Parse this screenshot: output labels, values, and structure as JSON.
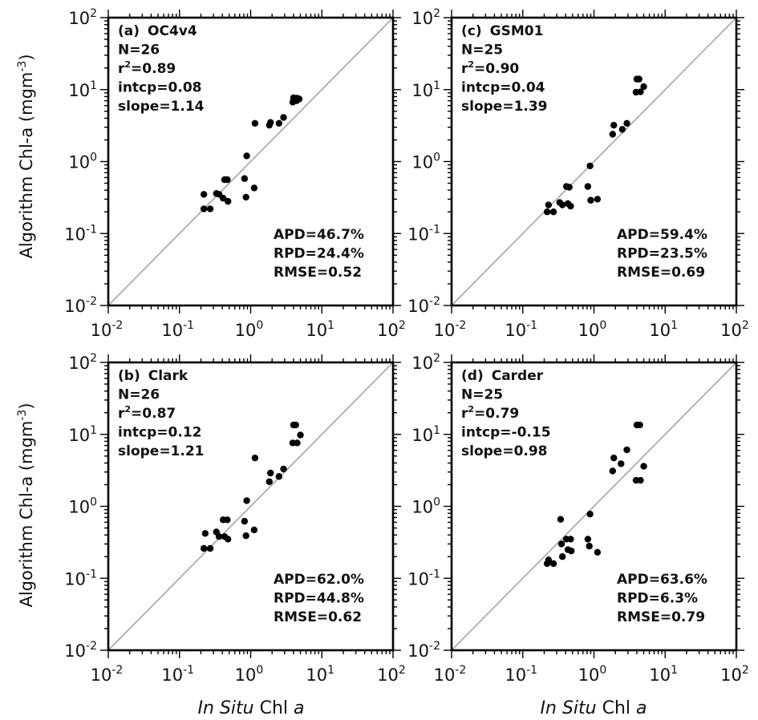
{
  "x_axis_label": {
    "italic": "In Situ",
    "rest": " Chl ",
    "last_italic": "a"
  },
  "y_axis_label": {
    "main": "Algorithm Chl-a (mgm",
    "sup": "-3",
    "close": ")"
  },
  "tick_labels": [
    {
      "base": "10",
      "exp": "-2"
    },
    {
      "base": "10",
      "exp": "-1"
    },
    {
      "base": "10",
      "exp": "0"
    },
    {
      "base": "10",
      "exp": "1"
    },
    {
      "base": "10",
      "exp": "2"
    }
  ],
  "chart_data": [
    {
      "type": "scatter",
      "panel": "(a)",
      "algorithm": "OC4v4",
      "xscale": "log",
      "yscale": "log",
      "xlim": [
        0.01,
        100
      ],
      "ylim": [
        0.01,
        100
      ],
      "one_to_one_line": true,
      "stats": {
        "N": "N=26",
        "r2_label": "r",
        "r2_value": "=0.89",
        "intcp": "intcp=0.08",
        "slope": "slope=1.14",
        "APD": "APD=46.7%",
        "RPD": "RPD=24.4%",
        "RMSE": "RMSE=0.52"
      },
      "points": [
        [
          0.22,
          0.22
        ],
        [
          0.22,
          0.35
        ],
        [
          0.27,
          0.22
        ],
        [
          0.33,
          0.36
        ],
        [
          0.36,
          0.35
        ],
        [
          0.41,
          0.31
        ],
        [
          0.43,
          0.56
        ],
        [
          0.47,
          0.56
        ],
        [
          0.48,
          0.28
        ],
        [
          0.82,
          0.58
        ],
        [
          0.86,
          0.32
        ],
        [
          0.88,
          1.2
        ],
        [
          1.12,
          0.43
        ],
        [
          1.15,
          3.4
        ],
        [
          1.83,
          3.2
        ],
        [
          1.9,
          3.5
        ],
        [
          2.5,
          3.4
        ],
        [
          2.9,
          4.1
        ],
        [
          3.9,
          6.7
        ],
        [
          4.0,
          7.7
        ],
        [
          4.2,
          7.2
        ],
        [
          4.4,
          7.0
        ],
        [
          4.5,
          7.6
        ],
        [
          4.8,
          7.4
        ]
      ]
    },
    {
      "type": "scatter",
      "panel": "(c)",
      "algorithm": "GSM01",
      "xscale": "log",
      "yscale": "log",
      "xlim": [
        0.01,
        100
      ],
      "ylim": [
        0.01,
        100
      ],
      "one_to_one_line": true,
      "stats": {
        "N": "N=25",
        "r2_label": "r",
        "r2_value": "=0.90",
        "intcp": "intcp=0.04",
        "slope": "slope=1.39",
        "APD": "APD=59.4%",
        "RPD": "RPD=23.5%",
        "RMSE": "RMSE=0.69"
      },
      "points": [
        [
          0.22,
          0.2
        ],
        [
          0.23,
          0.25
        ],
        [
          0.27,
          0.2
        ],
        [
          0.33,
          0.27
        ],
        [
          0.36,
          0.25
        ],
        [
          0.41,
          0.45
        ],
        [
          0.43,
          0.26
        ],
        [
          0.45,
          0.44
        ],
        [
          0.47,
          0.24
        ],
        [
          0.82,
          0.45
        ],
        [
          0.88,
          0.87
        ],
        [
          0.9,
          0.29
        ],
        [
          1.12,
          0.3
        ],
        [
          1.83,
          2.4
        ],
        [
          1.9,
          3.2
        ],
        [
          2.5,
          2.8
        ],
        [
          2.9,
          3.4
        ],
        [
          3.9,
          9.2
        ],
        [
          4.0,
          14
        ],
        [
          4.3,
          14
        ],
        [
          4.5,
          9.3
        ],
        [
          5.0,
          11
        ]
      ]
    },
    {
      "type": "scatter",
      "panel": "(b)",
      "algorithm": "Clark",
      "xscale": "log",
      "yscale": "log",
      "xlim": [
        0.01,
        100
      ],
      "ylim": [
        0.01,
        100
      ],
      "one_to_one_line": true,
      "stats": {
        "N": "N=26",
        "r2_label": "r",
        "r2_value": "=0.87",
        "intcp": "intcp=0.12",
        "slope": "slope=1.21",
        "APD": "APD=62.0%",
        "RPD": "RPD=44.8%",
        "RMSE": "RMSE=0.62"
      },
      "points": [
        [
          0.22,
          0.26
        ],
        [
          0.23,
          0.42
        ],
        [
          0.27,
          0.26
        ],
        [
          0.33,
          0.44
        ],
        [
          0.36,
          0.38
        ],
        [
          0.41,
          0.65
        ],
        [
          0.43,
          0.38
        ],
        [
          0.47,
          0.65
        ],
        [
          0.48,
          0.35
        ],
        [
          0.82,
          0.62
        ],
        [
          0.86,
          0.39
        ],
        [
          0.88,
          1.2
        ],
        [
          1.12,
          0.47
        ],
        [
          1.15,
          4.7
        ],
        [
          1.83,
          2.2
        ],
        [
          1.9,
          2.9
        ],
        [
          2.5,
          2.6
        ],
        [
          2.9,
          3.3
        ],
        [
          3.9,
          7.6
        ],
        [
          4.0,
          13.5
        ],
        [
          4.3,
          13.5
        ],
        [
          4.5,
          7.6
        ],
        [
          5.0,
          9.8
        ]
      ]
    },
    {
      "type": "scatter",
      "panel": "(d)",
      "algorithm": "Carder",
      "xscale": "log",
      "yscale": "log",
      "xlim": [
        0.01,
        100
      ],
      "ylim": [
        0.01,
        100
      ],
      "one_to_one_line": true,
      "stats": {
        "N": "N=25",
        "r2_label": "r",
        "r2_value": "=0.79",
        "intcp": "intcp=-0.15",
        "slope": "slope=0.98",
        "APD": "APD=63.6%",
        "RPD": "RPD=6.3%",
        "RMSE": "RMSE=0.79"
      },
      "points": [
        [
          0.22,
          0.16
        ],
        [
          0.23,
          0.18
        ],
        [
          0.27,
          0.16
        ],
        [
          0.34,
          0.66
        ],
        [
          0.35,
          0.3
        ],
        [
          0.36,
          0.2
        ],
        [
          0.41,
          0.35
        ],
        [
          0.43,
          0.25
        ],
        [
          0.47,
          0.35
        ],
        [
          0.48,
          0.24
        ],
        [
          0.82,
          0.35
        ],
        [
          0.86,
          0.28
        ],
        [
          0.88,
          0.78
        ],
        [
          1.12,
          0.23
        ],
        [
          1.83,
          3.1
        ],
        [
          1.9,
          4.7
        ],
        [
          2.4,
          3.9
        ],
        [
          2.9,
          6.1
        ],
        [
          3.9,
          2.3
        ],
        [
          4.0,
          13.5
        ],
        [
          4.4,
          13.5
        ],
        [
          4.5,
          2.3
        ],
        [
          5.0,
          3.6
        ]
      ]
    }
  ]
}
